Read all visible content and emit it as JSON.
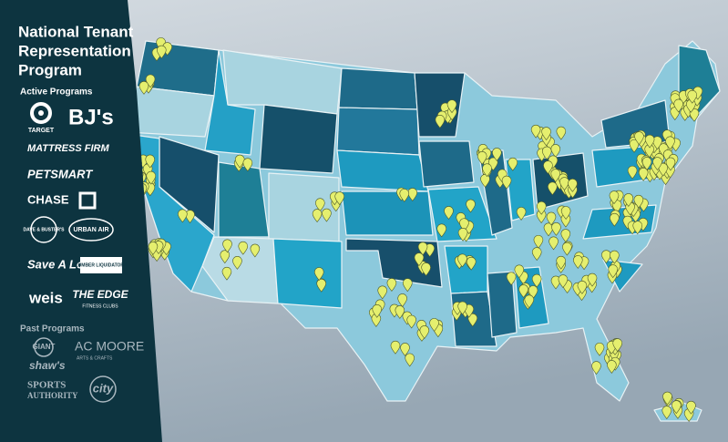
{
  "header": {
    "title": [
      "National Tenant",
      "Representation",
      "Program"
    ]
  },
  "active_programs": {
    "heading": "Active Programs",
    "logos": [
      "TARGET",
      "BJ's",
      "MATTRESS FIRM",
      "PETSMART",
      "CHASE",
      "DAVE & BUSTER'S",
      "URBAN AIR",
      "Save A Lot",
      "LUMBER LIQUIDATORS",
      "weis",
      "THE EDGE",
      "FITNESS CLUBS"
    ]
  },
  "past_programs": {
    "heading": "Past Programs",
    "logos": [
      "GIANT",
      "AC MOORE",
      "ARTS & CRAFTS",
      "shaw's",
      "SPORTS",
      "AUTHORITY",
      "city"
    ]
  }
}
